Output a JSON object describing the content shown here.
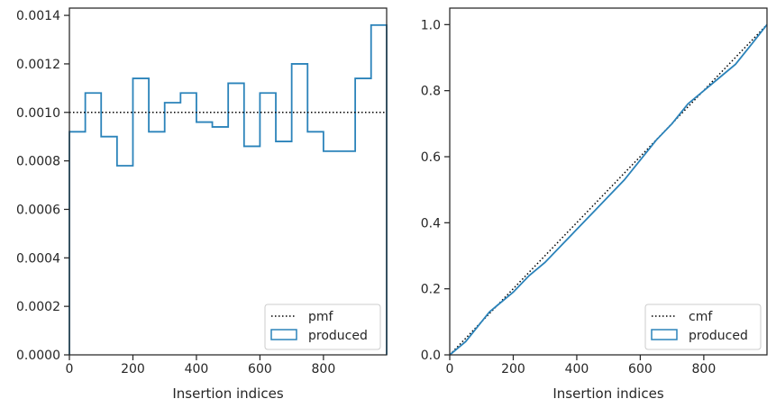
{
  "chart_data": [
    {
      "type": "line",
      "subtype": "step-histogram",
      "xlabel": "Insertion indices",
      "ylabel": "",
      "xlim": [
        0,
        999
      ],
      "ylim": [
        0,
        0.00143
      ],
      "xticks": [
        0,
        200,
        400,
        600,
        800
      ],
      "xtick_labels": [
        "0",
        "200",
        "400",
        "600",
        "800"
      ],
      "yticks": [
        0,
        0.0002,
        0.0004,
        0.0006,
        0.0008,
        0.001,
        0.0012,
        0.0014
      ],
      "ytick_labels": [
        "0.0000",
        "0.0002",
        "0.0004",
        "0.0006",
        "0.0008",
        "0.0010",
        "0.0012",
        "0.0014"
      ],
      "grid": false,
      "legend_position": "bottom-right",
      "bin_edges": [
        0,
        50,
        100,
        150,
        200,
        250,
        300,
        350,
        400,
        450,
        500,
        550,
        600,
        650,
        700,
        750,
        800,
        850,
        900,
        950,
        999
      ],
      "series": [
        {
          "name": "produced",
          "color": "#2b83ba",
          "style": "step",
          "values": [
            0.00092,
            0.00108,
            0.0009,
            0.00078,
            0.00114,
            0.00092,
            0.00104,
            0.00108,
            0.00096,
            0.00094,
            0.00112,
            0.00086,
            0.00108,
            0.00088,
            0.0012,
            0.00092,
            0.00084,
            0.00084,
            0.00114,
            0.00136
          ]
        },
        {
          "name": "pmf",
          "color": "#000000",
          "style": "dotted",
          "x": [
            0,
            999
          ],
          "y": [
            0.001,
            0.001
          ]
        }
      ]
    },
    {
      "type": "line",
      "xlabel": "Insertion indices",
      "ylabel": "",
      "xlim": [
        0,
        999
      ],
      "ylim": [
        0,
        1.05
      ],
      "xticks": [
        0,
        200,
        400,
        600,
        800
      ],
      "xtick_labels": [
        "0",
        "200",
        "400",
        "600",
        "800"
      ],
      "yticks": [
        0,
        0.2,
        0.4,
        0.6,
        0.8,
        1.0
      ],
      "ytick_labels": [
        "0.0",
        "0.2",
        "0.4",
        "0.6",
        "0.8",
        "1.0"
      ],
      "grid": false,
      "legend_position": "bottom-right",
      "series": [
        {
          "name": "cmf",
          "color": "#000000",
          "style": "dotted",
          "x": [
            0,
            999
          ],
          "y": [
            0,
            1.0
          ]
        },
        {
          "name": "produced",
          "color": "#2b83ba",
          "style": "solid",
          "x": [
            0,
            25,
            50,
            75,
            100,
            125,
            150,
            175,
            200,
            250,
            300,
            350,
            400,
            450,
            500,
            550,
            600,
            650,
            700,
            750,
            800,
            850,
            900,
            950,
            999
          ],
          "y": [
            0,
            0.02,
            0.04,
            0.07,
            0.1,
            0.13,
            0.15,
            0.17,
            0.19,
            0.24,
            0.28,
            0.33,
            0.38,
            0.43,
            0.48,
            0.53,
            0.59,
            0.65,
            0.7,
            0.76,
            0.8,
            0.84,
            0.88,
            0.94,
            1.0
          ]
        }
      ]
    }
  ]
}
